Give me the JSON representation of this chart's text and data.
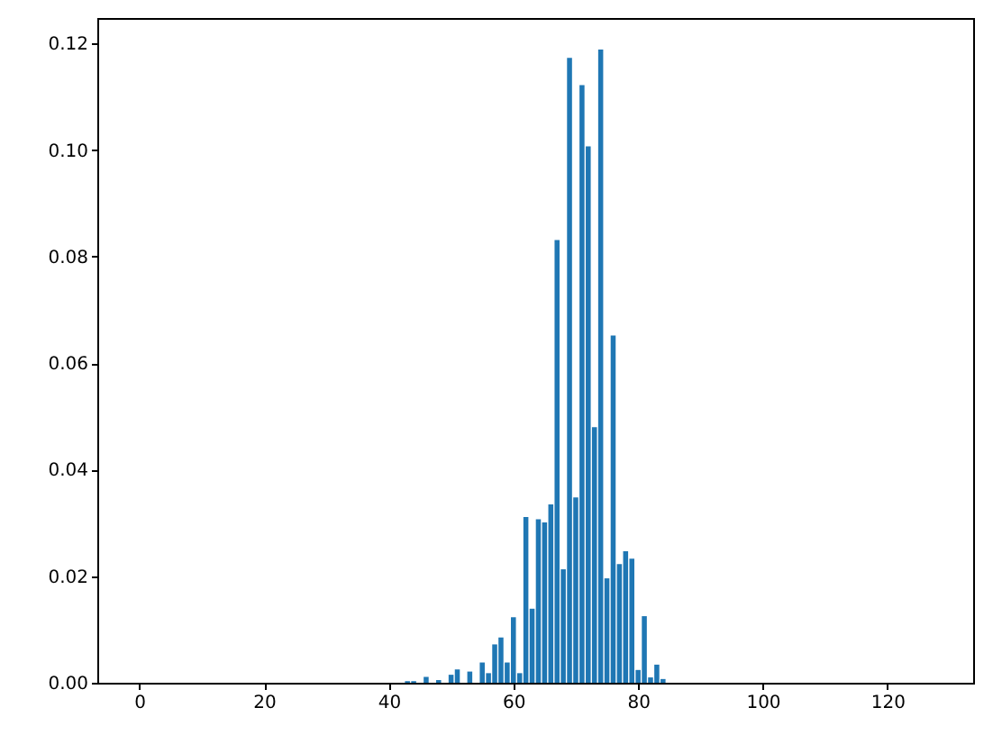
{
  "chart_data": {
    "type": "bar",
    "x": [
      0,
      1,
      2,
      3,
      4,
      5,
      6,
      7,
      8,
      9,
      10,
      11,
      12,
      13,
      14,
      15,
      16,
      17,
      18,
      19,
      20,
      21,
      22,
      23,
      24,
      25,
      26,
      27,
      28,
      29,
      30,
      31,
      32,
      33,
      34,
      35,
      36,
      37,
      38,
      39,
      40,
      41,
      42,
      43,
      44,
      45,
      46,
      47,
      48,
      49,
      50,
      51,
      52,
      53,
      54,
      55,
      56,
      57,
      58,
      59,
      60,
      61,
      62,
      63,
      64,
      65,
      66,
      67,
      68,
      69,
      70,
      71,
      72,
      73,
      74,
      75,
      76,
      77,
      78,
      79,
      80,
      81,
      82,
      83,
      84,
      85,
      86,
      87,
      88,
      89,
      90,
      91,
      92,
      93,
      94,
      95,
      96,
      97,
      98,
      99,
      100,
      101,
      102,
      103,
      104,
      105,
      106,
      107,
      108,
      109,
      110,
      111,
      112,
      113,
      114,
      115,
      116,
      117,
      118,
      119,
      120,
      121,
      122,
      123,
      124,
      125,
      126,
      127
    ],
    "values": [
      0,
      0,
      0,
      0,
      0,
      0,
      0,
      0,
      0,
      0,
      0,
      0,
      0,
      0,
      0,
      0,
      0,
      0,
      0,
      0,
      0,
      0,
      0,
      0,
      0,
      0,
      0,
      0,
      0,
      0,
      0,
      0,
      0,
      0,
      0,
      0,
      0,
      0,
      0,
      0,
      0,
      0,
      0,
      0.0003,
      0.0003,
      0,
      0.0011,
      0,
      0.0005,
      0,
      0.0015,
      0.0025,
      0,
      0.0021,
      0,
      0.0038,
      0.0018,
      0.0072,
      0.0085,
      0.0038,
      0.0123,
      0.0018,
      0.0311,
      0.0139,
      0.0307,
      0.0301,
      0.0335,
      0.0831,
      0.0213,
      0.1173,
      0.0348,
      0.1122,
      0.1007,
      0.048,
      0.1189,
      0.0196,
      0.0652,
      0.0223,
      0.0247,
      0.0233,
      0.0024,
      0.0125,
      0.001,
      0.0034,
      0.0007,
      0,
      0,
      0,
      0,
      0,
      0,
      0,
      0,
      0,
      0,
      0,
      0,
      0,
      0,
      0,
      0,
      0,
      0,
      0,
      0,
      0,
      0,
      0,
      0,
      0,
      0,
      0,
      0,
      0,
      0,
      0,
      0,
      0,
      0,
      0,
      0,
      0,
      0,
      0,
      0,
      0,
      0,
      0
    ],
    "color": "#1f77b4",
    "xlim": [
      -6.75,
      133.75
    ],
    "xticks": [
      0,
      20,
      40,
      60,
      80,
      100,
      120
    ],
    "ylim": [
      0,
      0.1248
    ],
    "yticks": [
      {
        "value": 0,
        "label": "0.00"
      },
      {
        "value": 0.02,
        "label": "0.02"
      },
      {
        "value": 0.04,
        "label": "0.04"
      },
      {
        "value": 0.06,
        "label": "0.06"
      },
      {
        "value": 0.08,
        "label": "0.08"
      },
      {
        "value": 0.1,
        "label": "0.10"
      },
      {
        "value": 0.12,
        "label": "0.12"
      }
    ],
    "grid": false
  }
}
